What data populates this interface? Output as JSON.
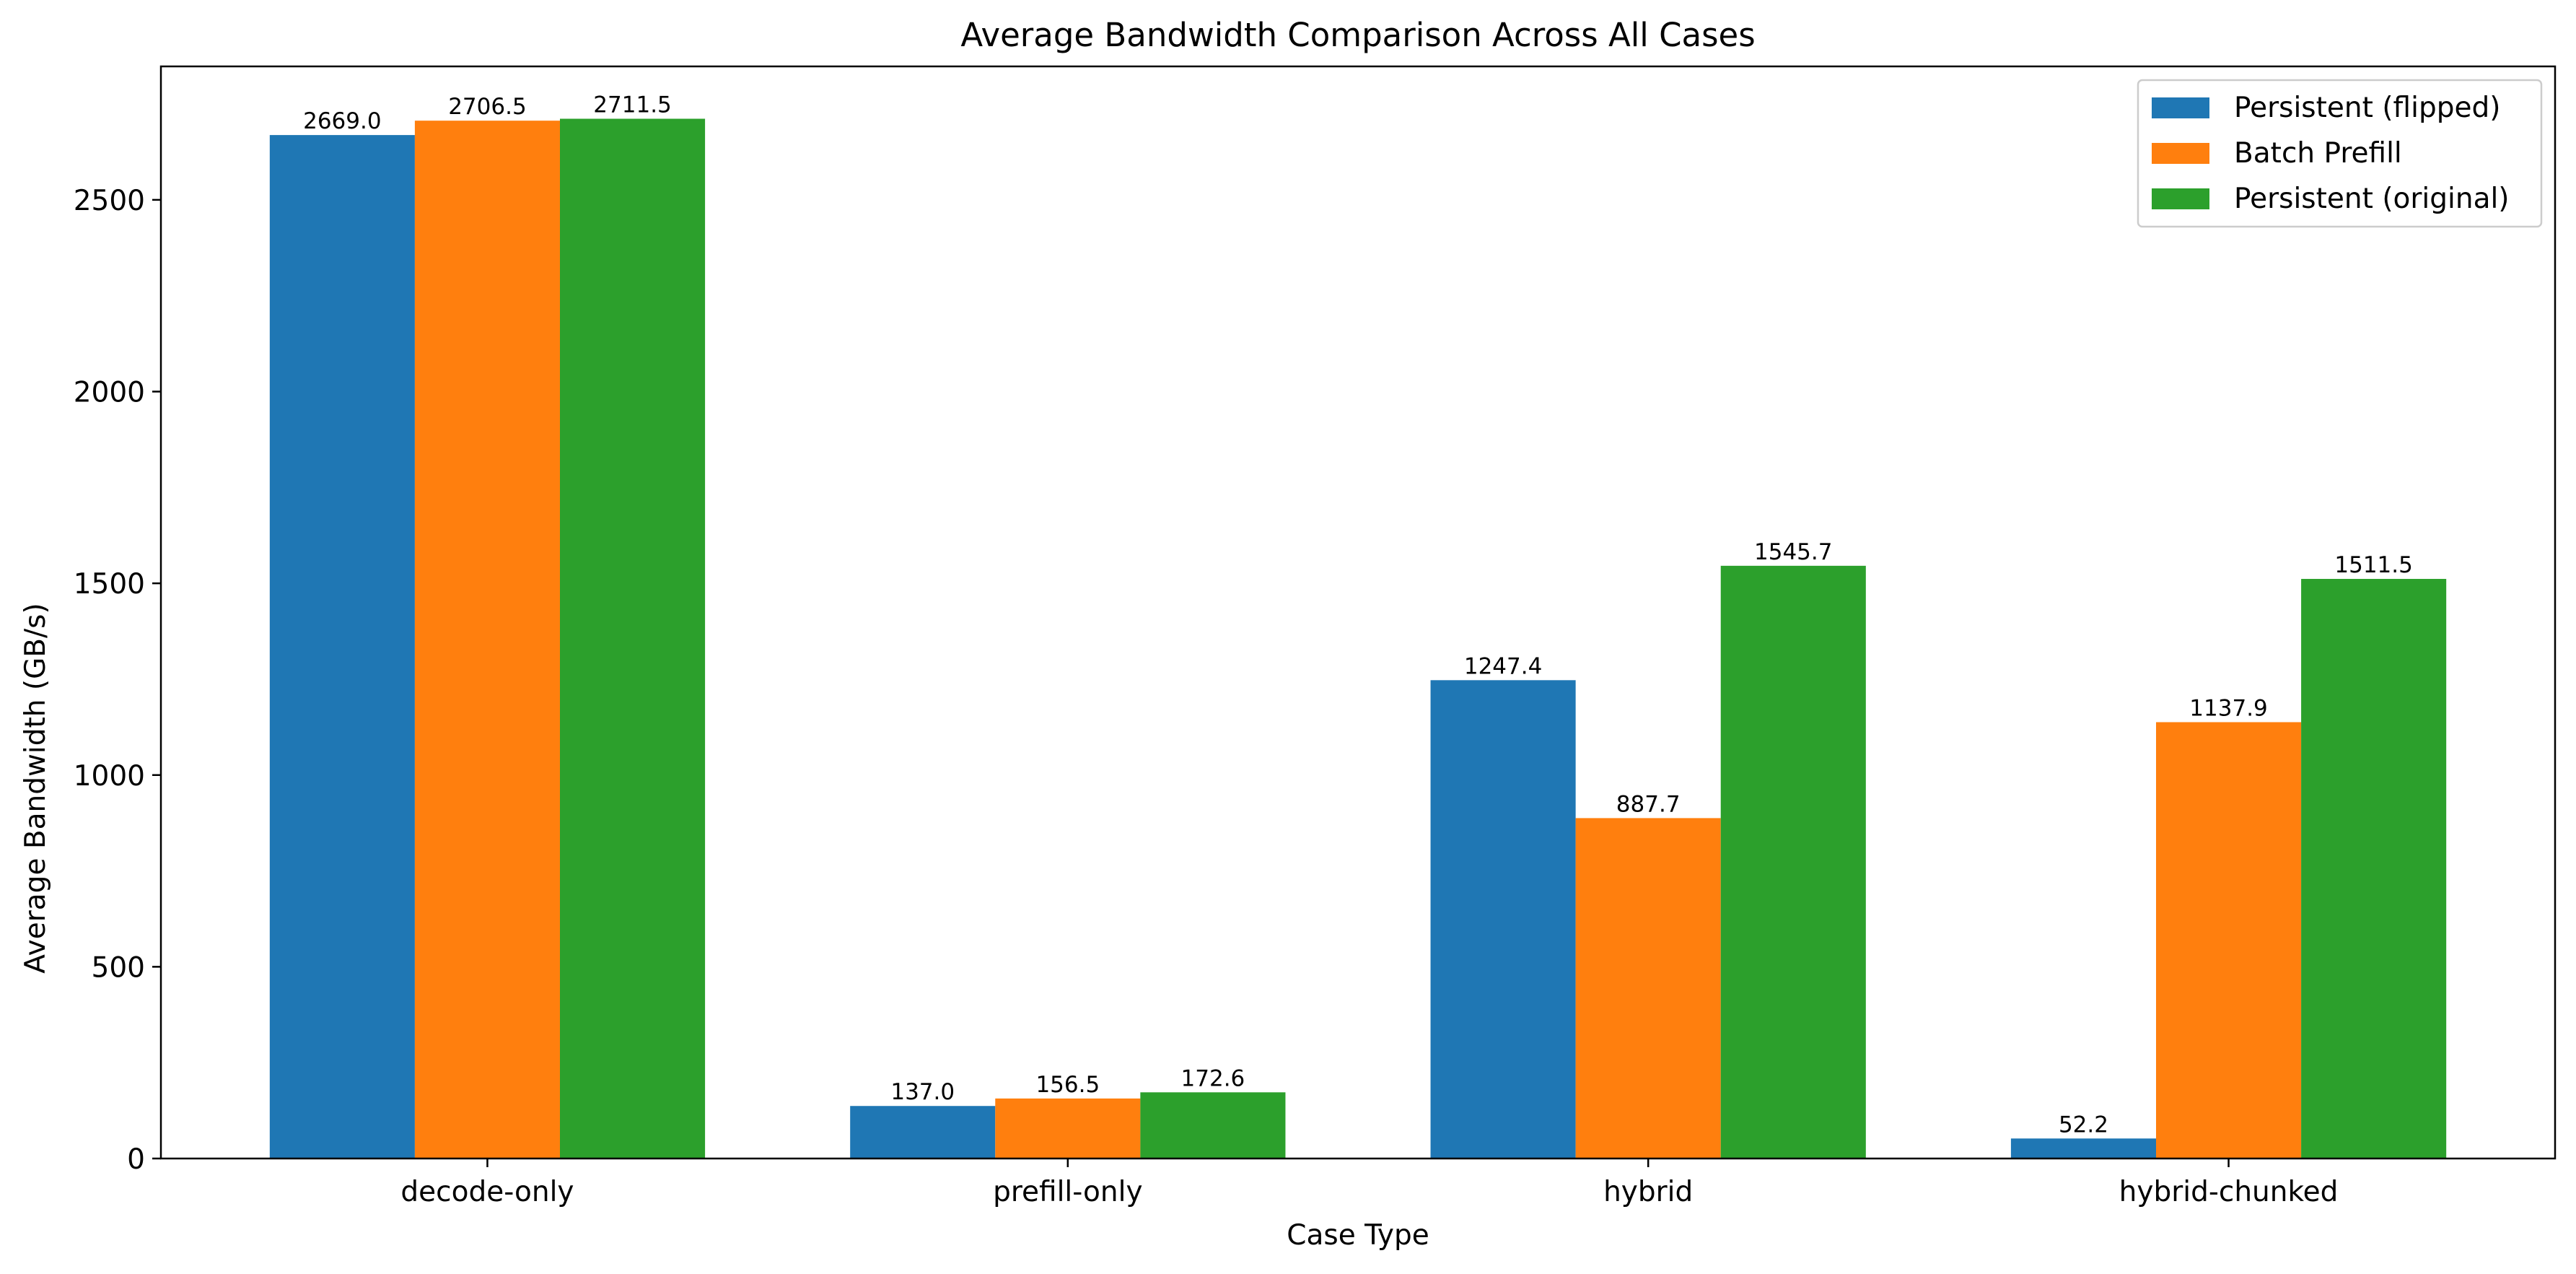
{
  "chart_data": {
    "type": "bar",
    "title": "Average Bandwidth Comparison Across All Cases",
    "xlabel": "Case Type",
    "ylabel": "Average Bandwidth (GB/s)",
    "categories": [
      "decode-only",
      "prefill-only",
      "hybrid",
      "hybrid-chunked"
    ],
    "series": [
      {
        "name": "Persistent (flipped)",
        "color": "#1f77b4",
        "values": [
          2669.0,
          137.0,
          1247.4,
          52.2
        ],
        "labels": [
          "2669.0",
          "137.0",
          "1247.4",
          "52.2"
        ]
      },
      {
        "name": "Batch Prefill",
        "color": "#ff7f0e",
        "values": [
          2706.5,
          156.5,
          887.7,
          1137.9
        ],
        "labels": [
          "2706.5",
          "156.5",
          "887.7",
          "1137.9"
        ]
      },
      {
        "name": "Persistent (original)",
        "color": "#2ca02c",
        "values": [
          2711.5,
          172.6,
          1545.7,
          1511.5
        ],
        "labels": [
          "2711.5",
          "172.6",
          "1545.7",
          "1511.5"
        ]
      }
    ],
    "yticks": [
      0,
      500,
      1000,
      1500,
      2000,
      2500
    ],
    "ylim": [
      0,
      2848
    ],
    "grid": false,
    "legend": "top-right"
  }
}
